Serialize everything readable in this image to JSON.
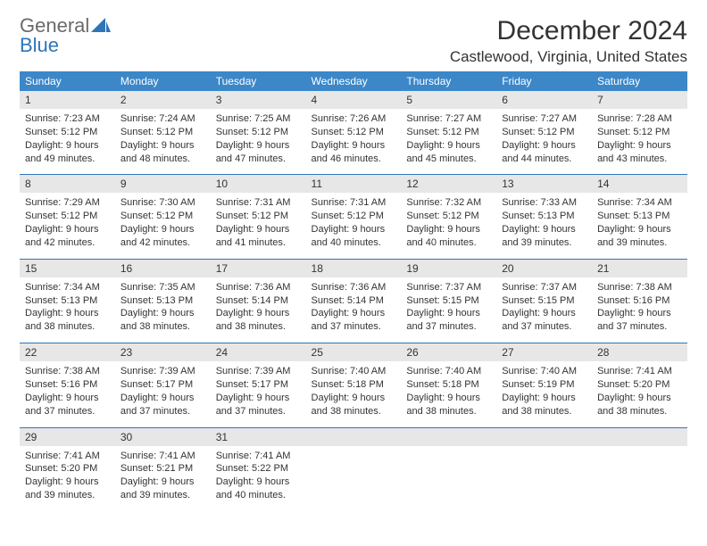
{
  "brand": {
    "line1a": "General",
    "line1b_blue": "Blue"
  },
  "title": "December 2024",
  "location": "Castlewood, Virginia, United States",
  "colors": {
    "header_bg": "#3b87c8",
    "header_text": "#ffffff",
    "daynum_bg": "#e7e7e7",
    "rule": "#2f76b8",
    "text": "#333333",
    "logo_gray": "#6a6a6a",
    "logo_blue": "#2f76b8"
  },
  "weekdays": [
    "Sunday",
    "Monday",
    "Tuesday",
    "Wednesday",
    "Thursday",
    "Friday",
    "Saturday"
  ],
  "weeks": [
    [
      {
        "d": "1",
        "r": "7:23 AM",
        "s": "5:12 PM",
        "l": "9 hours and 49 minutes."
      },
      {
        "d": "2",
        "r": "7:24 AM",
        "s": "5:12 PM",
        "l": "9 hours and 48 minutes."
      },
      {
        "d": "3",
        "r": "7:25 AM",
        "s": "5:12 PM",
        "l": "9 hours and 47 minutes."
      },
      {
        "d": "4",
        "r": "7:26 AM",
        "s": "5:12 PM",
        "l": "9 hours and 46 minutes."
      },
      {
        "d": "5",
        "r": "7:27 AM",
        "s": "5:12 PM",
        "l": "9 hours and 45 minutes."
      },
      {
        "d": "6",
        "r": "7:27 AM",
        "s": "5:12 PM",
        "l": "9 hours and 44 minutes."
      },
      {
        "d": "7",
        "r": "7:28 AM",
        "s": "5:12 PM",
        "l": "9 hours and 43 minutes."
      }
    ],
    [
      {
        "d": "8",
        "r": "7:29 AM",
        "s": "5:12 PM",
        "l": "9 hours and 42 minutes."
      },
      {
        "d": "9",
        "r": "7:30 AM",
        "s": "5:12 PM",
        "l": "9 hours and 42 minutes."
      },
      {
        "d": "10",
        "r": "7:31 AM",
        "s": "5:12 PM",
        "l": "9 hours and 41 minutes."
      },
      {
        "d": "11",
        "r": "7:31 AM",
        "s": "5:12 PM",
        "l": "9 hours and 40 minutes."
      },
      {
        "d": "12",
        "r": "7:32 AM",
        "s": "5:12 PM",
        "l": "9 hours and 40 minutes."
      },
      {
        "d": "13",
        "r": "7:33 AM",
        "s": "5:13 PM",
        "l": "9 hours and 39 minutes."
      },
      {
        "d": "14",
        "r": "7:34 AM",
        "s": "5:13 PM",
        "l": "9 hours and 39 minutes."
      }
    ],
    [
      {
        "d": "15",
        "r": "7:34 AM",
        "s": "5:13 PM",
        "l": "9 hours and 38 minutes."
      },
      {
        "d": "16",
        "r": "7:35 AM",
        "s": "5:13 PM",
        "l": "9 hours and 38 minutes."
      },
      {
        "d": "17",
        "r": "7:36 AM",
        "s": "5:14 PM",
        "l": "9 hours and 38 minutes."
      },
      {
        "d": "18",
        "r": "7:36 AM",
        "s": "5:14 PM",
        "l": "9 hours and 37 minutes."
      },
      {
        "d": "19",
        "r": "7:37 AM",
        "s": "5:15 PM",
        "l": "9 hours and 37 minutes."
      },
      {
        "d": "20",
        "r": "7:37 AM",
        "s": "5:15 PM",
        "l": "9 hours and 37 minutes."
      },
      {
        "d": "21",
        "r": "7:38 AM",
        "s": "5:16 PM",
        "l": "9 hours and 37 minutes."
      }
    ],
    [
      {
        "d": "22",
        "r": "7:38 AM",
        "s": "5:16 PM",
        "l": "9 hours and 37 minutes."
      },
      {
        "d": "23",
        "r": "7:39 AM",
        "s": "5:17 PM",
        "l": "9 hours and 37 minutes."
      },
      {
        "d": "24",
        "r": "7:39 AM",
        "s": "5:17 PM",
        "l": "9 hours and 37 minutes."
      },
      {
        "d": "25",
        "r": "7:40 AM",
        "s": "5:18 PM",
        "l": "9 hours and 38 minutes."
      },
      {
        "d": "26",
        "r": "7:40 AM",
        "s": "5:18 PM",
        "l": "9 hours and 38 minutes."
      },
      {
        "d": "27",
        "r": "7:40 AM",
        "s": "5:19 PM",
        "l": "9 hours and 38 minutes."
      },
      {
        "d": "28",
        "r": "7:41 AM",
        "s": "5:20 PM",
        "l": "9 hours and 38 minutes."
      }
    ],
    [
      {
        "d": "29",
        "r": "7:41 AM",
        "s": "5:20 PM",
        "l": "9 hours and 39 minutes."
      },
      {
        "d": "30",
        "r": "7:41 AM",
        "s": "5:21 PM",
        "l": "9 hours and 39 minutes."
      },
      {
        "d": "31",
        "r": "7:41 AM",
        "s": "5:22 PM",
        "l": "9 hours and 40 minutes."
      },
      {
        "empty": true
      },
      {
        "empty": true
      },
      {
        "empty": true
      },
      {
        "empty": true
      }
    ]
  ],
  "labels": {
    "sunrise": "Sunrise:",
    "sunset": "Sunset:",
    "daylight": "Daylight:"
  }
}
